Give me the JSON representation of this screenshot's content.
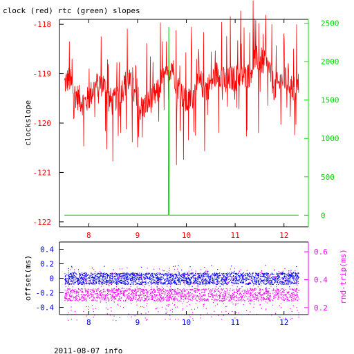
{
  "title": "clock (red) rtc (green) slopes",
  "footer": "2011-08-07 info",
  "colors": {
    "clock": "#ff0000",
    "rtc": "#00dd00",
    "offset": "#0000ff",
    "rndtrip": "#ff00ff",
    "frame": "#000000"
  },
  "chart_data": [
    {
      "type": "line",
      "grid": false,
      "xlim": [
        7.4,
        12.5
      ],
      "x_ticks": [
        "8",
        "9",
        "10",
        "11",
        "12"
      ],
      "ylabel": "clockslope",
      "ylim": [
        -122.1,
        -117.9
      ],
      "y_ticks": [
        "-118",
        "-119",
        "-120",
        "-121",
        "-122"
      ],
      "y2_ticks": [
        "2500",
        "2000",
        "1500",
        "1000",
        "500",
        "0"
      ],
      "y2lim": [
        -150,
        2550
      ],
      "series": [
        {
          "name": "clock",
          "axis": "left",
          "x": [
            7.5,
            7.6,
            7.7,
            7.8,
            7.9,
            8.0,
            8.1,
            8.2,
            8.3,
            8.4,
            8.5,
            8.6,
            8.7,
            8.8,
            8.9,
            9.0,
            9.1,
            9.2,
            9.3,
            9.4,
            9.5,
            9.6,
            9.7,
            9.8,
            9.9,
            10.0,
            10.1,
            10.2,
            10.3,
            10.4,
            10.5,
            10.6,
            10.7,
            10.8,
            10.9,
            11.0,
            11.1,
            11.2,
            11.3,
            11.4,
            11.5,
            11.6,
            11.7,
            11.8,
            11.9,
            12.0,
            12.1,
            12.2,
            12.3
          ],
          "values": [
            -119.2,
            -119.1,
            -119.4,
            -119.5,
            -119.6,
            -119.5,
            -119.3,
            -119.2,
            -119.2,
            -119.5,
            -119.6,
            -119.4,
            -119.3,
            -119.1,
            -119.3,
            -119.7,
            -119.7,
            -119.6,
            -119.5,
            -119.4,
            -119.1,
            -119.1,
            -118.8,
            -119.2,
            -119.4,
            -119.6,
            -119.5,
            -119.3,
            -119.2,
            -119.3,
            -119.2,
            -119.0,
            -119.0,
            -119.2,
            -119.1,
            -119.1,
            -119.0,
            -119.1,
            -119.0,
            -118.7,
            -118.7,
            -118.8,
            -118.9,
            -119.3,
            -119.2,
            -119.1,
            -119.2,
            -119.3,
            -119.2
          ]
        },
        {
          "name": "rtc",
          "axis": "right",
          "x": [
            7.5,
            9.63,
            9.64,
            9.65,
            12.3
          ],
          "values": [
            0,
            0,
            2450,
            0,
            0
          ]
        }
      ]
    },
    {
      "type": "scatter",
      "grid": false,
      "xlim": [
        7.4,
        12.5
      ],
      "x_ticks": [
        "8",
        "9",
        "10",
        "11",
        "12"
      ],
      "ylabel": "offset(ms)",
      "ylim": [
        -0.5,
        0.5
      ],
      "y_ticks": [
        "0.4",
        "0.2",
        "0",
        "-0.2",
        "-0.4"
      ],
      "y2label": "rnd-trip(ms)",
      "y2lim": [
        0.15,
        0.67
      ],
      "y2_ticks": [
        "0.6",
        "0.4",
        "0.2"
      ],
      "series": [
        {
          "name": "offset",
          "axis": "left",
          "center": 0.0,
          "band": [
            -0.08,
            0.08
          ]
        },
        {
          "name": "rnd-trip",
          "axis": "right",
          "center": 0.3,
          "band": [
            0.25,
            0.34
          ]
        }
      ]
    }
  ]
}
